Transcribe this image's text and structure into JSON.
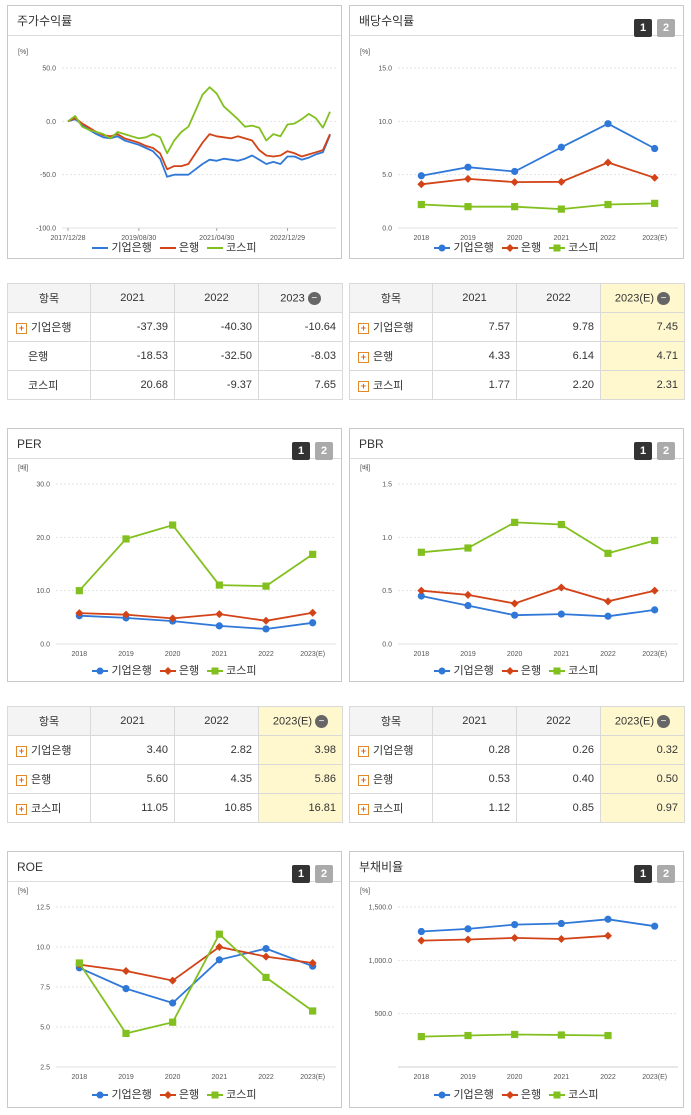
{
  "colors": {
    "blue": "#2f78d8",
    "red": "#d24318",
    "green": "#82c01f"
  },
  "legend_labels": [
    "기업은행",
    "은행",
    "코스피"
  ],
  "panels": {
    "return": {
      "title": "주가수익률",
      "chart_data": {
        "type": "line",
        "unit": "[%]",
        "ylim": [
          -100,
          50
        ],
        "yticks": [
          "50.0",
          "0.0",
          "-50.0",
          "-100.0"
        ],
        "xtick_labels": [
          "2017/12/28",
          "2019/08/30",
          "2021/04/30",
          "2022/12/29"
        ],
        "x": [
          "2017/12/28",
          "2018/02",
          "2018/04",
          "2018/06",
          "2018/08",
          "2018/10",
          "2018/12",
          "2019/02",
          "2019/04",
          "2019/06",
          "2019/08/30",
          "2019/10",
          "2019/12",
          "2020/02",
          "2020/03",
          "2020/05",
          "2020/07",
          "2020/09",
          "2020/11",
          "2021/01",
          "2021/03",
          "2021/04/30",
          "2021/07",
          "2021/09",
          "2021/11",
          "2022/01",
          "2022/03",
          "2022/05",
          "2022/07",
          "2022/09",
          "2022/11",
          "2022/12/29",
          "2023/02",
          "2023/04",
          "2023/06",
          "2023/08",
          "2023/10",
          "2023/12"
        ],
        "series": [
          {
            "name": "기업은행",
            "color": "#2f78d8",
            "values": [
              0,
              2,
              -3,
              -8,
              -12,
              -15,
              -16,
              -14,
              -18,
              -20,
              -22,
              -25,
              -28,
              -35,
              -52,
              -50,
              -50,
              -50,
              -45,
              -40,
              -36,
              -37,
              -35,
              -36,
              -37,
              -35,
              -32,
              -36,
              -40,
              -38,
              -40,
              -33,
              -33,
              -36,
              -34,
              -31,
              -29,
              -13
            ]
          },
          {
            "name": "은행",
            "color": "#d24318",
            "values": [
              0,
              3,
              -2,
              -6,
              -10,
              -13,
              -14,
              -12,
              -16,
              -18,
              -20,
              -23,
              -25,
              -30,
              -45,
              -42,
              -42,
              -40,
              -30,
              -20,
              -12,
              -14,
              -15,
              -16,
              -14,
              -16,
              -18,
              -27,
              -32,
              -33,
              -32,
              -28,
              -30,
              -33,
              -31,
              -29,
              -27,
              -12
            ]
          },
          {
            "name": "코스피",
            "color": "#82c01f",
            "values": [
              0,
              5,
              -5,
              -8,
              -10,
              -12,
              -16,
              -10,
              -12,
              -14,
              -16,
              -15,
              -12,
              -15,
              -30,
              -18,
              -10,
              -5,
              10,
              25,
              32,
              26,
              14,
              8,
              2,
              -5,
              -4,
              -6,
              -18,
              -12,
              -14,
              -3,
              -2,
              2,
              7,
              3,
              -6,
              9
            ]
          }
        ]
      },
      "table": {
        "headers": [
          "항목",
          "2021",
          "2022",
          "2023"
        ],
        "rows": [
          {
            "name": "기업은행",
            "values": [
              "-37.39",
              "-40.30",
              "-10.64"
            ],
            "plus": true
          },
          {
            "name": "은행",
            "values": [
              "-18.53",
              "-32.50",
              "-8.03"
            ],
            "plus": false
          },
          {
            "name": "코스피",
            "values": [
              "20.68",
              "-9.37",
              "7.65"
            ],
            "plus": false
          }
        ]
      }
    },
    "dividend": {
      "title": "배당수익률",
      "tabs": [
        "1",
        "2"
      ],
      "chart_data": {
        "type": "line",
        "unit": "[%]",
        "ylim": [
          0,
          15
        ],
        "yticks": [
          "15.0",
          "10.0",
          "5.0",
          "0.0"
        ],
        "x": [
          "2018",
          "2019",
          "2020",
          "2021",
          "2022",
          "2023(E)"
        ],
        "series": [
          {
            "name": "기업은행",
            "color": "#2f78d8",
            "marker": "circle",
            "values": [
              4.9,
              5.7,
              5.3,
              7.57,
              9.78,
              7.45
            ]
          },
          {
            "name": "은행",
            "color": "#d24318",
            "marker": "diamond",
            "values": [
              4.1,
              4.6,
              4.3,
              4.33,
              6.14,
              4.71
            ]
          },
          {
            "name": "코스피",
            "color": "#82c01f",
            "marker": "square",
            "values": [
              2.2,
              2.0,
              2.0,
              1.77,
              2.2,
              2.31
            ]
          }
        ]
      },
      "table": {
        "headers": [
          "항목",
          "2021",
          "2022",
          "2023(E)"
        ],
        "rows": [
          {
            "name": "기업은행",
            "values": [
              "7.57",
              "9.78",
              "7.45"
            ],
            "plus": true
          },
          {
            "name": "은행",
            "values": [
              "4.33",
              "6.14",
              "4.71"
            ],
            "plus": true
          },
          {
            "name": "코스피",
            "values": [
              "1.77",
              "2.20",
              "2.31"
            ],
            "plus": true
          }
        ]
      }
    },
    "per": {
      "title": "PER",
      "tabs": [
        "1",
        "2"
      ],
      "chart_data": {
        "type": "line",
        "unit": "[배]",
        "ylim": [
          0,
          30
        ],
        "yticks": [
          "30.0",
          "20.0",
          "10.0",
          "0.0"
        ],
        "x": [
          "2018",
          "2019",
          "2020",
          "2021",
          "2022",
          "2023(E)"
        ],
        "series": [
          {
            "name": "기업은행",
            "color": "#2f78d8",
            "marker": "circle",
            "values": [
              5.3,
              4.9,
              4.3,
              3.4,
              2.82,
              3.98
            ]
          },
          {
            "name": "은행",
            "color": "#d24318",
            "marker": "diamond",
            "values": [
              5.8,
              5.5,
              4.8,
              5.6,
              4.35,
              5.86
            ]
          },
          {
            "name": "코스피",
            "color": "#82c01f",
            "marker": "square",
            "values": [
              10.0,
              19.7,
              22.3,
              11.05,
              10.85,
              16.81
            ]
          }
        ]
      },
      "table": {
        "headers": [
          "항목",
          "2021",
          "2022",
          "2023(E)"
        ],
        "rows": [
          {
            "name": "기업은행",
            "values": [
              "3.40",
              "2.82",
              "3.98"
            ],
            "plus": true
          },
          {
            "name": "은행",
            "values": [
              "5.60",
              "4.35",
              "5.86"
            ],
            "plus": true
          },
          {
            "name": "코스피",
            "values": [
              "11.05",
              "10.85",
              "16.81"
            ],
            "plus": true
          }
        ]
      }
    },
    "pbr": {
      "title": "PBR",
      "tabs": [
        "1",
        "2"
      ],
      "chart_data": {
        "type": "line",
        "unit": "[배]",
        "ylim": [
          0,
          1.5
        ],
        "yticks": [
          "1.5",
          "1.0",
          "0.5",
          "0.0"
        ],
        "x": [
          "2018",
          "2019",
          "2020",
          "2021",
          "2022",
          "2023(E)"
        ],
        "series": [
          {
            "name": "기업은행",
            "color": "#2f78d8",
            "marker": "circle",
            "values": [
              0.45,
              0.36,
              0.27,
              0.28,
              0.26,
              0.32
            ]
          },
          {
            "name": "은행",
            "color": "#d24318",
            "marker": "diamond",
            "values": [
              0.5,
              0.46,
              0.38,
              0.53,
              0.4,
              0.5
            ]
          },
          {
            "name": "코스피",
            "color": "#82c01f",
            "marker": "square",
            "values": [
              0.86,
              0.9,
              1.14,
              1.12,
              0.85,
              0.97
            ]
          }
        ]
      },
      "table": {
        "headers": [
          "항목",
          "2021",
          "2022",
          "2023(E)"
        ],
        "rows": [
          {
            "name": "기업은행",
            "values": [
              "0.28",
              "0.26",
              "0.32"
            ],
            "plus": true
          },
          {
            "name": "은행",
            "values": [
              "0.53",
              "0.40",
              "0.50"
            ],
            "plus": true
          },
          {
            "name": "코스피",
            "values": [
              "1.12",
              "0.85",
              "0.97"
            ],
            "plus": true
          }
        ]
      }
    },
    "roe": {
      "title": "ROE",
      "tabs": [
        "1",
        "2"
      ],
      "chart_data": {
        "type": "line",
        "unit": "[%]",
        "ylim": [
          2.5,
          12.5
        ],
        "yticks": [
          "12.5",
          "10.0",
          "7.5",
          "5.0",
          "2.5"
        ],
        "x": [
          "2018",
          "2019",
          "2020",
          "2021",
          "2022",
          "2023(E)"
        ],
        "series": [
          {
            "name": "기업은행",
            "color": "#2f78d8",
            "marker": "circle",
            "values": [
              8.7,
              7.4,
              6.5,
              9.2,
              9.9,
              8.8
            ]
          },
          {
            "name": "은행",
            "color": "#d24318",
            "marker": "diamond",
            "values": [
              8.9,
              8.5,
              7.9,
              10.0,
              9.4,
              9.0
            ]
          },
          {
            "name": "코스피",
            "color": "#82c01f",
            "marker": "square",
            "values": [
              9.0,
              4.6,
              5.3,
              10.8,
              8.1,
              6.0
            ]
          }
        ]
      }
    },
    "debt": {
      "title": "부채비율",
      "tabs": [
        "1",
        "2"
      ],
      "chart_data": {
        "type": "line",
        "unit": "[%]",
        "ylim": [
          0,
          1500
        ],
        "yticks": [
          "1,500.0",
          "1,000.0",
          "500.0"
        ],
        "x": [
          "2018",
          "2019",
          "2020",
          "2021",
          "2022",
          "2023(E)"
        ],
        "series": [
          {
            "name": "기업은행",
            "color": "#2f78d8",
            "marker": "circle",
            "values": [
              1270,
              1295,
              1335,
              1345,
              1385,
              1320
            ]
          },
          {
            "name": "은행",
            "color": "#d24318",
            "marker": "diamond",
            "values": [
              1185,
              1195,
              1210,
              1200,
              1230,
              null
            ]
          },
          {
            "name": "코스피",
            "color": "#82c01f",
            "marker": "square",
            "values": [
              285,
              295,
              305,
              300,
              295,
              null
            ]
          }
        ]
      }
    }
  }
}
